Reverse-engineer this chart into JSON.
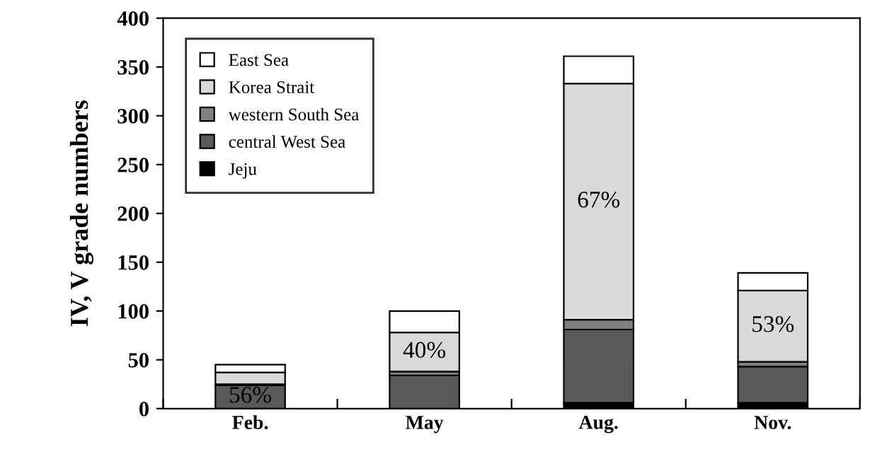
{
  "chart_data": {
    "type": "bar",
    "stacked": true,
    "ylabel": "IV, V grade numbers",
    "categories": [
      "Feb.",
      "May",
      "Aug.",
      "Nov."
    ],
    "series": [
      {
        "name": "Jeju",
        "color": "#000000",
        "values": [
          0,
          0,
          6,
          6
        ]
      },
      {
        "name": "central West Sea",
        "color": "#595959",
        "values": [
          24,
          34,
          75,
          37
        ]
      },
      {
        "name": "western South Sea",
        "color": "#808080",
        "values": [
          1,
          4,
          10,
          5
        ]
      },
      {
        "name": "Korea Strait",
        "color": "#d9d9d9",
        "values": [
          12,
          40,
          242,
          73
        ]
      },
      {
        "name": "East Sea",
        "color": "#ffffff",
        "values": [
          8,
          22,
          28,
          18
        ]
      }
    ],
    "annotations": [
      "56%",
      "40%",
      "67%",
      "53%"
    ],
    "ylim": [
      0,
      400
    ],
    "yticks": [
      0,
      50,
      100,
      150,
      200,
      250,
      300,
      350,
      400
    ],
    "grid": false,
    "legend": "top left"
  }
}
